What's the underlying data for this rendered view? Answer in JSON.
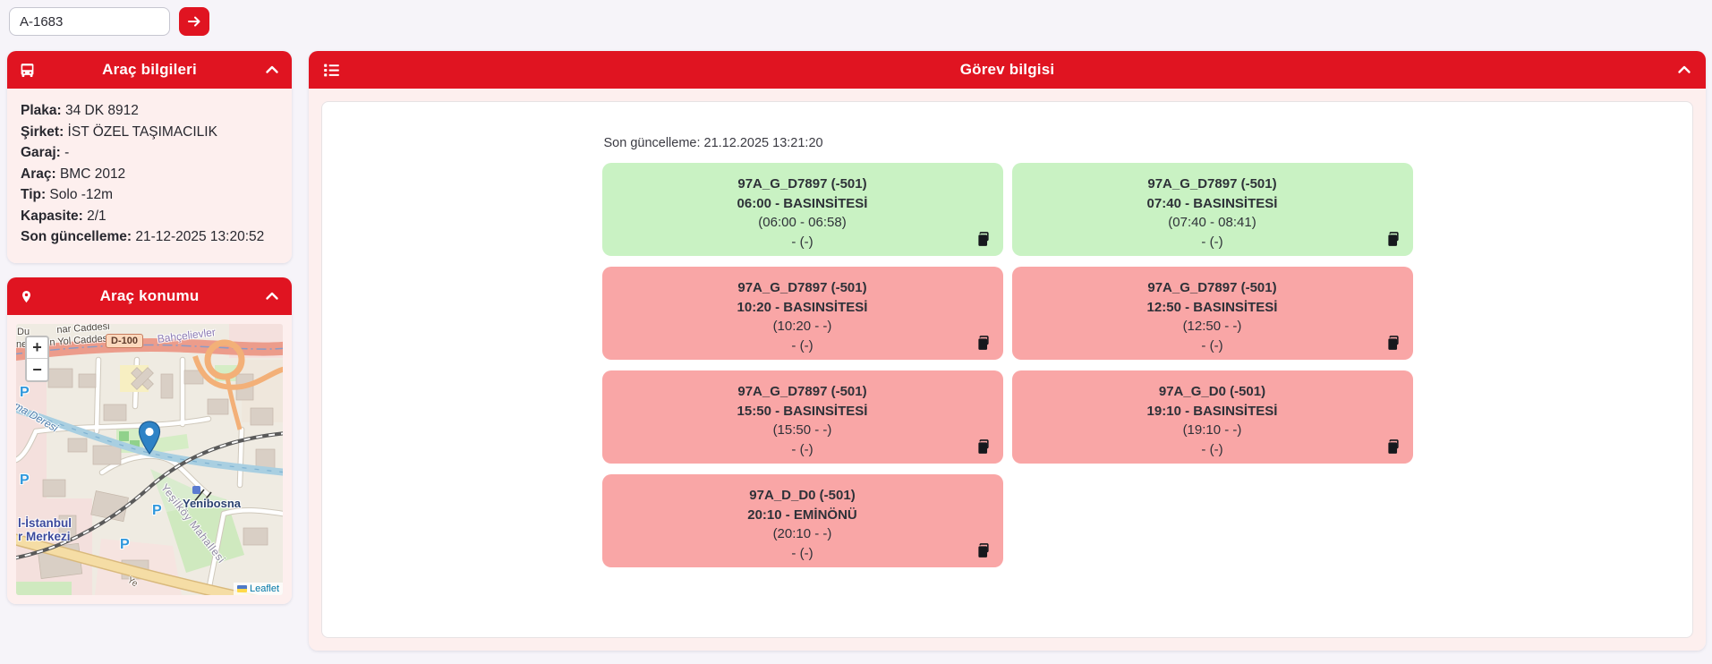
{
  "colors": {
    "accent_red": "#e01421",
    "card_done_bg": "#c9f2c3",
    "card_pending_bg": "#f9a6a6",
    "panel_body_bg": "#fdefee"
  },
  "search": {
    "value": "A-1683",
    "submit_icon": "arrow-right-icon"
  },
  "vehicle_panel": {
    "title": "Araç bilgileri",
    "icon": "bus-icon",
    "collapse_icon": "chevron-up-icon",
    "fields": [
      {
        "label": "Plaka:",
        "value": "34 DK 8912"
      },
      {
        "label": "Şirket:",
        "value": "İST ÖZEL TAŞIMACILIK"
      },
      {
        "label": "Garaj:",
        "value": "-"
      },
      {
        "label": "Araç:",
        "value": "BMC 2012"
      },
      {
        "label": "Tip:",
        "value": "Solo -12m"
      },
      {
        "label": "Kapasite:",
        "value": "2/1"
      },
      {
        "label": "Son güncelleme:",
        "value": "21-12-2025 13:20:52"
      }
    ]
  },
  "location_panel": {
    "title": "Araç konumu",
    "icon": "map-pin-icon",
    "collapse_icon": "chevron-up-icon",
    "map": {
      "zoom_in_label": "+",
      "zoom_out_label": "−",
      "attribution": "Leaflet",
      "labels": {
        "road_fragment_left_1": "Du",
        "road_1": "nar Caddesi",
        "road_fragment_left_2": "ne",
        "road_2": "n Yol Caddesi",
        "road_shield": "D-100",
        "district": "Bahçelievler",
        "stream": "ma Deresi",
        "station": "Yenibosna",
        "poi_line_1": "l-İstanbul",
        "poi_line_2": "r Merkezi",
        "neighborhood": "Yeşilköy Mahallesi",
        "road_3": "Ye",
        "parking": "P"
      }
    }
  },
  "task_panel": {
    "title": "Görev bilgisi",
    "menu_icon": "list-icon",
    "collapse_icon": "chevron-up-icon",
    "last_update": "Son güncelleme: 21.12.2025 13:21:20",
    "tasks": [
      {
        "trip": "97A_G_D7897 (-501)",
        "departure": "06:00 - BASINSİTESİ",
        "window": "(06:00 - 06:58)",
        "detail": "- (-)",
        "status": "done"
      },
      {
        "trip": "97A_G_D7897 (-501)",
        "departure": "07:40 - BASINSİTESİ",
        "window": "(07:40 - 08:41)",
        "detail": "- (-)",
        "status": "done"
      },
      {
        "trip": "97A_G_D7897 (-501)",
        "departure": "10:20 - BASINSİTESİ",
        "window": "(10:20 - -)",
        "detail": "- (-)",
        "status": "pending"
      },
      {
        "trip": "97A_G_D7897 (-501)",
        "departure": "12:50 - BASINSİTESİ",
        "window": "(12:50 - -)",
        "detail": "- (-)",
        "status": "pending"
      },
      {
        "trip": "97A_G_D7897 (-501)",
        "departure": "15:50 - BASINSİTESİ",
        "window": "(15:50 - -)",
        "detail": "- (-)",
        "status": "pending"
      },
      {
        "trip": "97A_G_D0 (-501)",
        "departure": "19:10 - BASINSİTESİ",
        "window": "(19:10 - -)",
        "detail": "- (-)",
        "status": "pending"
      },
      {
        "trip": "97A_D_D0 (-501)",
        "departure": "20:10 - EMİNÖNÜ",
        "window": "(20:10 - -)",
        "detail": "- (-)",
        "status": "pending"
      }
    ]
  }
}
